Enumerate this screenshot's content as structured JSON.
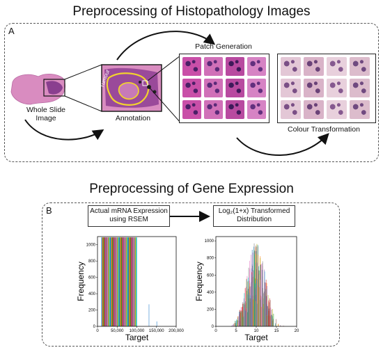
{
  "titles": {
    "top": "Preprocessing of Histopathology Images",
    "bottom": "Preprocessing of Gene Expression"
  },
  "panel_a": {
    "letter": "A",
    "whole_slide_image": "Whole Slide\nImage",
    "annotation": "Annotation",
    "tumour_label": "Tumour",
    "patch_generation": "Patch Generation",
    "colour_transformation": "Colour Transformation"
  },
  "panel_b": {
    "letter": "B",
    "box_left": "Actual mRNA Expression\nusing RSEM",
    "box_right": "Log₂(1+x) Transformed\nDistribution"
  },
  "colors": {
    "he_pink": "#d98cc0",
    "he_purple": "#8a3f8f",
    "annotation_yellow": "#f2d22e",
    "series": [
      "#1f77b4",
      "#ff7f0e",
      "#2ca02c",
      "#d62728",
      "#9467bd",
      "#8c564b",
      "#e377c2",
      "#7f7f7f",
      "#bcbd22",
      "#17becf"
    ]
  },
  "chart_data": [
    {
      "type": "bar",
      "title": "",
      "xlabel": "Target",
      "ylabel": "Frequency",
      "xlim": [
        0,
        200000
      ],
      "ylim": [
        0,
        1100
      ],
      "x_ticks": [
        "0",
        "50,000",
        "100,000",
        "150,000",
        "200,000"
      ],
      "y_ticks": [
        "0",
        "200",
        "400",
        "600",
        "800",
        "1000"
      ],
      "bars": [
        {
          "x": [
            10000,
            100000
          ],
          "height": 1090
        },
        {
          "x": [
            130000,
            131000
          ],
          "height": 270
        },
        {
          "x": [
            150000,
            151000
          ],
          "height": 60
        }
      ]
    },
    {
      "type": "bar",
      "title": "",
      "xlabel": "Target",
      "ylabel": "Frequency",
      "xlim": [
        0,
        20
      ],
      "ylim": [
        0,
        1050
      ],
      "x_ticks": [
        "0",
        "5",
        "10",
        "15",
        "20"
      ],
      "y_ticks": [
        "0",
        "200",
        "400",
        "600",
        "800",
        "1000"
      ],
      "distribution_peak_x": 10,
      "distribution_peak_y": 1000
    }
  ]
}
